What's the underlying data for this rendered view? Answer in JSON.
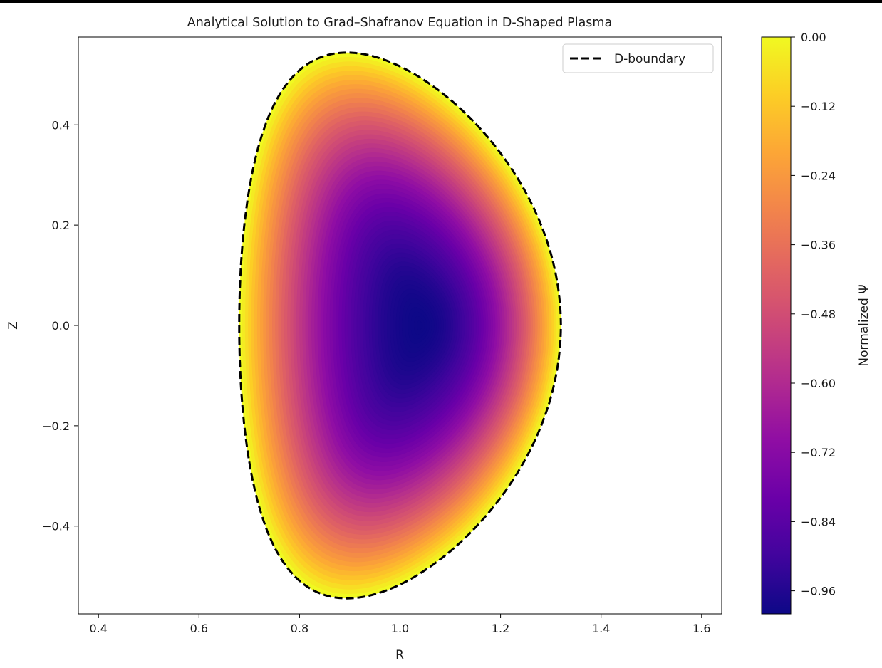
{
  "chart_data": {
    "type": "heatmap",
    "title": "Analytical Solution to Grad–Shafranov Equation in D-Shaped Plasma",
    "xlabel": "R",
    "ylabel": "Z",
    "xlim": [
      0.36,
      1.64
    ],
    "ylim": [
      -0.575,
      0.575
    ],
    "xticks": [
      0.4,
      0.6,
      0.8,
      1.0,
      1.2,
      1.4,
      1.6
    ],
    "xtick_labels": [
      "0.4",
      "0.6",
      "0.8",
      "1.0",
      "1.2",
      "1.4",
      "1.6"
    ],
    "yticks": [
      -0.4,
      -0.2,
      0.0,
      0.2,
      0.4
    ],
    "ytick_labels": [
      "−0.4",
      "−0.2",
      "0.0",
      "0.2",
      "0.4"
    ],
    "colormap": "plasma",
    "colorbar": {
      "label": "Normalized Ψ",
      "range": [
        -1.0,
        0.0
      ],
      "ticks": [
        0.0,
        -0.12,
        -0.24,
        -0.36,
        -0.48,
        -0.6,
        -0.72,
        -0.84,
        -0.96
      ],
      "tick_labels": [
        "0.00",
        "−0.12",
        "−0.24",
        "−0.36",
        "−0.48",
        "−0.60",
        "−0.72",
        "−0.84",
        "−0.96"
      ]
    },
    "field": {
      "description_of_values": "Psi = -1 at magnetic axis, 0 on boundary",
      "magnetic_axis": [
        1.04,
        0.0
      ],
      "min_value": -1.0,
      "boundary_value": 0.0
    },
    "boundary": {
      "legend_label": "D-boundary",
      "line_style": "dashed",
      "color": "#000000",
      "R0": 1.0,
      "minor_radius": 0.32,
      "elongation": 1.7,
      "triangularity": 0.33
    },
    "legend": {
      "placement": "top-right",
      "entries": [
        "D-boundary"
      ]
    },
    "grid": false
  }
}
